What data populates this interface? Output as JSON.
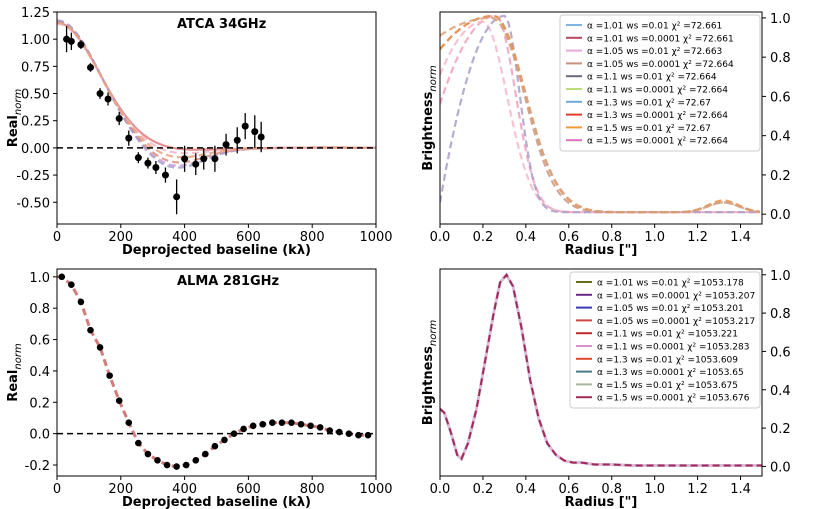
{
  "chart_data": [
    {
      "type": "scatter",
      "panel": "top-left",
      "title": "ATCA 34GHz",
      "xlabel": "Deprojected baseline (kλ)",
      "ylabel": "Real",
      "ylabel_sub": "norm",
      "xlim": [
        0,
        1000
      ],
      "ylim": [
        -0.7,
        1.25
      ],
      "xticks": [
        0,
        200,
        400,
        600,
        800,
        1000
      ],
      "xtick_labels": [
        "0",
        "200",
        "400",
        "600",
        "800",
        "1000"
      ],
      "yticks": [
        1.25,
        1.0,
        0.75,
        0.5,
        0.25,
        0.0,
        -0.25,
        -0.5
      ],
      "ytick_labels": [
        "1.25",
        "1.00",
        "0.75",
        "0.50",
        "0.25",
        "0.00",
        "-0.25",
        "-0.50"
      ],
      "points": [
        {
          "x": 30,
          "y": 1.0,
          "err": 0.12
        },
        {
          "x": 45,
          "y": 0.98,
          "err": 0.08
        },
        {
          "x": 75,
          "y": 0.95,
          "err": 0.04
        },
        {
          "x": 105,
          "y": 0.74,
          "err": 0.04
        },
        {
          "x": 135,
          "y": 0.5,
          "err": 0.05
        },
        {
          "x": 160,
          "y": 0.45,
          "err": 0.06
        },
        {
          "x": 195,
          "y": 0.27,
          "err": 0.06
        },
        {
          "x": 225,
          "y": 0.09,
          "err": 0.07
        },
        {
          "x": 255,
          "y": -0.09,
          "err": 0.05
        },
        {
          "x": 285,
          "y": -0.14,
          "err": 0.05
        },
        {
          "x": 310,
          "y": -0.18,
          "err": 0.06
        },
        {
          "x": 340,
          "y": -0.25,
          "err": 0.07
        },
        {
          "x": 375,
          "y": -0.45,
          "err": 0.16
        },
        {
          "x": 400,
          "y": -0.1,
          "err": 0.12
        },
        {
          "x": 435,
          "y": -0.15,
          "err": 0.1
        },
        {
          "x": 460,
          "y": -0.1,
          "err": 0.1
        },
        {
          "x": 495,
          "y": -0.1,
          "err": 0.12
        },
        {
          "x": 530,
          "y": 0.03,
          "err": 0.1
        },
        {
          "x": 565,
          "y": 0.07,
          "err": 0.12
        },
        {
          "x": 590,
          "y": 0.2,
          "err": 0.12
        },
        {
          "x": 620,
          "y": 0.15,
          "err": 0.15
        },
        {
          "x": 640,
          "y": 0.1,
          "err": 0.14
        }
      ],
      "models": [
        {
          "color": "#e07a7a",
          "kind": "solid",
          "lobe": -0.02,
          "peak": 1.15
        },
        {
          "color": "#c9a0d6",
          "kind": "dashed",
          "lobe": -0.18,
          "peak": 1.17
        },
        {
          "color": "#d98f7c",
          "kind": "dashed",
          "lobe": -0.15,
          "peak": 1.16
        },
        {
          "color": "#a99ccc",
          "kind": "dashed",
          "lobe": -0.2,
          "peak": 1.17
        },
        {
          "color": "#f0b5c8",
          "kind": "dashed",
          "lobe": -0.06,
          "peak": 1.14
        },
        {
          "color": "#e8a07a",
          "kind": "dashed",
          "lobe": -0.1,
          "peak": 1.15
        }
      ]
    },
    {
      "type": "line",
      "panel": "top-right",
      "xlabel": "Radius [\"]",
      "ylabel": "Brightness",
      "ylabel_sub": "norm",
      "xlim": [
        0.0,
        1.5
      ],
      "ylim": [
        -0.05,
        1.03
      ],
      "xticks": [
        0.0,
        0.2,
        0.4,
        0.6,
        0.8,
        1.0,
        1.2,
        1.4
      ],
      "xtick_labels": [
        "0.0",
        "0.2",
        "0.4",
        "0.6",
        "0.8",
        "1.0",
        "1.2",
        "1.4"
      ],
      "yticks": [
        0.0,
        0.2,
        0.4,
        0.6,
        0.8,
        1.0
      ],
      "ytick_labels": [
        "0.0",
        "0.2",
        "0.4",
        "0.6",
        "0.8",
        "1.0"
      ],
      "legend": [
        {
          "label": "α =1.01 ws =0.01 χ² =72.661",
          "color": "#7fb3e0"
        },
        {
          "label": "α =1.01 ws =0.0001 χ² =72.661",
          "color": "#b8465e"
        },
        {
          "label": "α =1.05 ws =0.01 χ² =72.663",
          "color": "#e8a6dc"
        },
        {
          "label": "α =1.05 ws =0.0001 χ² =72.664",
          "color": "#c9907e"
        },
        {
          "label": "α =1.1 ws =0.01 χ² =72.664",
          "color": "#6a6a7a"
        },
        {
          "label": "α =1.1 ws =0.0001 χ² =72.664",
          "color": "#bcdc7a"
        },
        {
          "label": "α =1.3 ws =0.01 χ² =72.67",
          "color": "#6fa8d8"
        },
        {
          "label": "α =1.3 ws =0.0001 χ² =72.664",
          "color": "#e0402a"
        },
        {
          "label": "α =1.5 ws =0.01 χ² =72.67",
          "color": "#f09a3a"
        },
        {
          "label": "α =1.5 ws =0.0001 χ² =72.664",
          "color": "#e070c0"
        }
      ],
      "profiles": [
        {
          "color": "#f0a0c0",
          "y0": 0.55,
          "peak_r": 0.26,
          "peak": 1.0,
          "width": 0.13,
          "bump": 0.0
        },
        {
          "color": "#f5b8c8",
          "y0": 0.7,
          "peak_r": 0.2,
          "peak": 0.97,
          "width": 0.16,
          "bump": 0.0
        },
        {
          "color": "#a99cc8",
          "y0": 0.05,
          "peak_r": 0.3,
          "peak": 1.0,
          "width": 0.1,
          "bump": 0.0
        },
        {
          "color": "#c49a88",
          "y0": 0.83,
          "peak_r": 0.25,
          "peak": 1.0,
          "width": 0.2,
          "bump": 0.05
        },
        {
          "color": "#e8904a",
          "y0": 0.83,
          "peak_r": 0.25,
          "peak": 1.0,
          "width": 0.21,
          "bump": 0.06
        },
        {
          "color": "#d8a07a",
          "y0": 0.9,
          "peak_r": 0.24,
          "peak": 0.99,
          "width": 0.22,
          "bump": 0.05
        }
      ]
    },
    {
      "type": "scatter",
      "panel": "bottom-left",
      "title": "ALMA 281GHz",
      "xlabel": "Deprojected baseline (kλ)",
      "ylabel": "Real",
      "ylabel_sub": "norm",
      "xlim": [
        0,
        1000
      ],
      "ylim": [
        -0.27,
        1.05
      ],
      "xticks": [
        0,
        200,
        400,
        600,
        800,
        1000
      ],
      "xtick_labels": [
        "0",
        "200",
        "400",
        "600",
        "800",
        "1000"
      ],
      "yticks": [
        1.0,
        0.8,
        0.6,
        0.4,
        0.2,
        0.0,
        -0.2
      ],
      "ytick_labels": [
        "1.0",
        "0.8",
        "0.6",
        "0.4",
        "0.2",
        "0.0",
        "-0.2"
      ],
      "points": [
        {
          "x": 15,
          "y": 1.0
        },
        {
          "x": 45,
          "y": 0.95
        },
        {
          "x": 75,
          "y": 0.84
        },
        {
          "x": 105,
          "y": 0.66
        },
        {
          "x": 135,
          "y": 0.55
        },
        {
          "x": 165,
          "y": 0.37
        },
        {
          "x": 195,
          "y": 0.21
        },
        {
          "x": 225,
          "y": 0.07
        },
        {
          "x": 255,
          "y": -0.06
        },
        {
          "x": 285,
          "y": -0.13
        },
        {
          "x": 315,
          "y": -0.17
        },
        {
          "x": 345,
          "y": -0.2
        },
        {
          "x": 375,
          "y": -0.21
        },
        {
          "x": 405,
          "y": -0.2
        },
        {
          "x": 435,
          "y": -0.17
        },
        {
          "x": 465,
          "y": -0.13
        },
        {
          "x": 495,
          "y": -0.08
        },
        {
          "x": 525,
          "y": -0.04
        },
        {
          "x": 555,
          "y": 0.0
        },
        {
          "x": 585,
          "y": 0.03
        },
        {
          "x": 615,
          "y": 0.05
        },
        {
          "x": 645,
          "y": 0.06
        },
        {
          "x": 675,
          "y": 0.07
        },
        {
          "x": 705,
          "y": 0.07
        },
        {
          "x": 735,
          "y": 0.07
        },
        {
          "x": 765,
          "y": 0.06
        },
        {
          "x": 795,
          "y": 0.05
        },
        {
          "x": 825,
          "y": 0.04
        },
        {
          "x": 855,
          "y": 0.02
        },
        {
          "x": 885,
          "y": 0.01
        },
        {
          "x": 915,
          "y": 0.0
        },
        {
          "x": 945,
          "y": -0.01
        },
        {
          "x": 975,
          "y": -0.01
        }
      ],
      "model_color": "#d47a7a"
    },
    {
      "type": "line",
      "panel": "bottom-right",
      "xlabel": "Radius [\"]",
      "ylabel": "Brightness",
      "ylabel_sub": "norm",
      "xlim": [
        0.0,
        1.5
      ],
      "ylim": [
        -0.05,
        1.03
      ],
      "xticks": [
        0.0,
        0.2,
        0.4,
        0.6,
        0.8,
        1.0,
        1.2,
        1.4
      ],
      "xtick_labels": [
        "0.0",
        "0.2",
        "0.4",
        "0.6",
        "0.8",
        "1.0",
        "1.2",
        "1.4"
      ],
      "yticks": [
        0.0,
        0.2,
        0.4,
        0.6,
        0.8,
        1.0
      ],
      "ytick_labels": [
        "0.0",
        "0.2",
        "0.4",
        "0.6",
        "0.8",
        "1.0"
      ],
      "legend": [
        {
          "label": "α =1.01 ws =0.01 χ² =1053.178",
          "color": "#6b6b1f"
        },
        {
          "label": "α =1.01 ws =0.0001 χ² =1053.207",
          "color": "#6a2a8a"
        },
        {
          "label": "α =1.05 ws =0.01 χ² =1053.201",
          "color": "#3a3ab8"
        },
        {
          "label": "α =1.05 ws =0.0001 χ² =1053.217",
          "color": "#d04848"
        },
        {
          "label": "α =1.1 ws =0.01 χ² =1053.221",
          "color": "#c02a2a"
        },
        {
          "label": "α =1.1 ws =0.0001 χ² =1053.283",
          "color": "#d890d0"
        },
        {
          "label": "α =1.3 ws =0.01 χ² =1053.609",
          "color": "#e04a2a"
        },
        {
          "label": "α =1.3 ws =0.0001 χ² =1053.65",
          "color": "#4a7a88"
        },
        {
          "label": "α =1.5 ws =0.01 χ² =1053.675",
          "color": "#a8b8a0"
        },
        {
          "label": "α =1.5 ws =0.0001 χ² =1053.676",
          "color": "#a02a5a"
        }
      ],
      "profile": {
        "color": "#a02a5a",
        "points": [
          [
            0.0,
            0.3
          ],
          [
            0.02,
            0.28
          ],
          [
            0.05,
            0.18
          ],
          [
            0.08,
            0.06
          ],
          [
            0.1,
            0.04
          ],
          [
            0.13,
            0.12
          ],
          [
            0.17,
            0.3
          ],
          [
            0.21,
            0.55
          ],
          [
            0.25,
            0.8
          ],
          [
            0.28,
            0.96
          ],
          [
            0.31,
            1.0
          ],
          [
            0.34,
            0.94
          ],
          [
            0.38,
            0.72
          ],
          [
            0.42,
            0.45
          ],
          [
            0.46,
            0.25
          ],
          [
            0.5,
            0.12
          ],
          [
            0.54,
            0.06
          ],
          [
            0.58,
            0.03
          ],
          [
            0.62,
            0.02
          ],
          [
            0.66,
            0.02
          ],
          [
            0.72,
            0.01
          ],
          [
            0.8,
            0.01
          ],
          [
            0.9,
            0.005
          ],
          [
            1.0,
            0.005
          ],
          [
            1.1,
            0.005
          ],
          [
            1.2,
            0.005
          ],
          [
            1.3,
            0.005
          ],
          [
            1.4,
            0.005
          ],
          [
            1.5,
            0.005
          ]
        ]
      }
    }
  ]
}
